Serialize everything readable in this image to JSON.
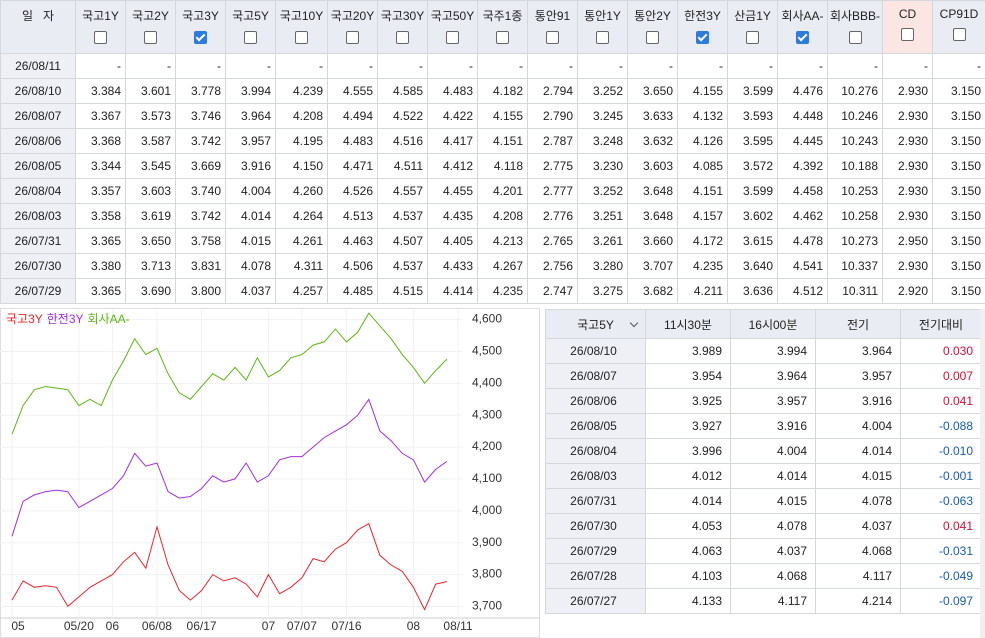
{
  "top_table": {
    "columns": [
      {
        "label": "일   자"
      },
      {
        "label": "국고1Y",
        "checked": false
      },
      {
        "label": "국고2Y",
        "checked": false
      },
      {
        "label": "국고3Y",
        "checked": true
      },
      {
        "label": "국고5Y",
        "checked": false
      },
      {
        "label": "국고10Y",
        "checked": false
      },
      {
        "label": "국고20Y",
        "checked": false
      },
      {
        "label": "국고30Y",
        "checked": false
      },
      {
        "label": "국고50Y",
        "checked": false
      },
      {
        "label": "국주1종",
        "checked": false
      },
      {
        "label": "통안91",
        "checked": false
      },
      {
        "label": "통안1Y",
        "checked": false
      },
      {
        "label": "통안2Y",
        "checked": false
      },
      {
        "label": "한전3Y",
        "checked": true
      },
      {
        "label": "산금1Y",
        "checked": false
      },
      {
        "label": "회사AA-",
        "checked": true
      },
      {
        "label": "회사BBB-",
        "checked": false
      },
      {
        "label": "CD",
        "checked": false
      },
      {
        "label": "CP91D",
        "checked": false
      }
    ],
    "rows": [
      [
        "26/08/11",
        "-",
        "-",
        "-",
        "-",
        "-",
        "-",
        "-",
        "-",
        "-",
        "-",
        "-",
        "-",
        "-",
        "-",
        "-",
        "-",
        "-",
        "-"
      ],
      [
        "26/08/10",
        "3.384",
        "3.601",
        "3.778",
        "3.994",
        "4.239",
        "4.555",
        "4.585",
        "4.483",
        "4.182",
        "2.794",
        "3.252",
        "3.650",
        "4.155",
        "3.599",
        "4.476",
        "10.276",
        "2.930",
        "3.150"
      ],
      [
        "26/08/07",
        "3.367",
        "3.573",
        "3.746",
        "3.964",
        "4.208",
        "4.494",
        "4.522",
        "4.422",
        "4.155",
        "2.790",
        "3.245",
        "3.633",
        "4.132",
        "3.593",
        "4.448",
        "10.246",
        "2.930",
        "3.150"
      ],
      [
        "26/08/06",
        "3.368",
        "3.587",
        "3.742",
        "3.957",
        "4.195",
        "4.483",
        "4.516",
        "4.417",
        "4.151",
        "2.787",
        "3.248",
        "3.632",
        "4.126",
        "3.595",
        "4.445",
        "10.243",
        "2.930",
        "3.150"
      ],
      [
        "26/08/05",
        "3.344",
        "3.545",
        "3.669",
        "3.916",
        "4.150",
        "4.471",
        "4.511",
        "4.412",
        "4.118",
        "2.775",
        "3.230",
        "3.603",
        "4.085",
        "3.572",
        "4.392",
        "10.188",
        "2.930",
        "3.150"
      ],
      [
        "26/08/04",
        "3.357",
        "3.603",
        "3.740",
        "4.004",
        "4.260",
        "4.526",
        "4.557",
        "4.455",
        "4.201",
        "2.777",
        "3.252",
        "3.648",
        "4.151",
        "3.599",
        "4.458",
        "10.253",
        "2.930",
        "3.150"
      ],
      [
        "26/08/03",
        "3.358",
        "3.619",
        "3.742",
        "4.014",
        "4.264",
        "4.513",
        "4.537",
        "4.435",
        "4.208",
        "2.776",
        "3.251",
        "3.648",
        "4.157",
        "3.602",
        "4.462",
        "10.258",
        "2.930",
        "3.150"
      ],
      [
        "26/07/31",
        "3.365",
        "3.650",
        "3.758",
        "4.015",
        "4.261",
        "4.463",
        "4.507",
        "4.405",
        "4.213",
        "2.765",
        "3.261",
        "3.660",
        "4.172",
        "3.615",
        "4.478",
        "10.273",
        "2.950",
        "3.150"
      ],
      [
        "26/07/30",
        "3.380",
        "3.713",
        "3.831",
        "4.078",
        "4.311",
        "4.506",
        "4.537",
        "4.433",
        "4.267",
        "2.756",
        "3.280",
        "3.707",
        "4.235",
        "3.640",
        "4.541",
        "10.337",
        "2.930",
        "3.150"
      ],
      [
        "26/07/29",
        "3.365",
        "3.690",
        "3.800",
        "4.037",
        "4.257",
        "4.485",
        "4.515",
        "4.414",
        "4.235",
        "2.747",
        "3.275",
        "3.682",
        "4.211",
        "3.636",
        "4.512",
        "10.311",
        "2.920",
        "3.150"
      ]
    ]
  },
  "chart_data": {
    "type": "line",
    "categories": [
      "05",
      null,
      null,
      null,
      null,
      null,
      "05/20",
      null,
      null,
      "06",
      null,
      null,
      null,
      "06/08",
      null,
      null,
      null,
      "06/17",
      null,
      null,
      null,
      null,
      null,
      "07",
      null,
      null,
      "07/07",
      null,
      null,
      null,
      "07/16",
      null,
      null,
      null,
      null,
      null,
      "08",
      null,
      null,
      null,
      "08/11"
    ],
    "series": [
      {
        "name": "국고3Y",
        "color": "#e8262c",
        "values": [
          3720,
          3780,
          3760,
          3765,
          3760,
          3700,
          3730,
          3760,
          3780,
          3800,
          3840,
          3870,
          3820,
          3950,
          3830,
          3750,
          3720,
          3750,
          3800,
          3780,
          3790,
          3770,
          3730,
          3800,
          3740,
          3760,
          3790,
          3850,
          3840,
          3880,
          3900,
          3940,
          3960,
          3860,
          3830,
          3810,
          3760,
          3690,
          3770,
          3778,
          null
        ]
      },
      {
        "name": "한전3Y",
        "color": "#a22ee0",
        "values": [
          3920,
          4030,
          4050,
          4060,
          4065,
          4060,
          4010,
          4030,
          4050,
          4070,
          4110,
          4180,
          4140,
          4150,
          4060,
          4040,
          4045,
          4070,
          4110,
          4090,
          4100,
          4150,
          4090,
          4110,
          4160,
          4170,
          4170,
          4200,
          4230,
          4250,
          4270,
          4300,
          4350,
          4250,
          4220,
          4180,
          4160,
          4090,
          4130,
          4155,
          null
        ]
      },
      {
        "name": "회사AA-",
        "color": "#5cb811",
        "values": [
          4240,
          4330,
          4380,
          4390,
          4385,
          4380,
          4330,
          4350,
          4330,
          4410,
          4470,
          4540,
          4490,
          4510,
          4430,
          4370,
          4350,
          4390,
          4430,
          4410,
          4450,
          4410,
          4480,
          4420,
          4440,
          4480,
          4490,
          4520,
          4530,
          4570,
          4530,
          4560,
          4620,
          4580,
          4540,
          4490,
          4450,
          4400,
          4440,
          4476,
          null
        ]
      }
    ],
    "ylim": [
      3670,
      4630
    ],
    "yticks": [
      {
        "value": 3700,
        "label": "3,700"
      },
      {
        "value": 3800,
        "label": "3,800"
      },
      {
        "value": 3900,
        "label": "3,900"
      },
      {
        "value": 4000,
        "label": "4,000"
      },
      {
        "value": 4100,
        "label": "4,100"
      },
      {
        "value": 4200,
        "label": "4,200"
      },
      {
        "value": 4300,
        "label": "4,300"
      },
      {
        "value": 4400,
        "label": "4,400"
      },
      {
        "value": 4500,
        "label": "4,500"
      },
      {
        "value": 4600,
        "label": "4,600"
      }
    ],
    "grid": true
  },
  "side_table": {
    "header": [
      "국고5Y",
      "11시30분",
      "16시00분",
      "전기",
      "전기대비"
    ],
    "rows": [
      [
        "26/08/10",
        "3.989",
        "3.994",
        "3.964",
        "0.030"
      ],
      [
        "26/08/07",
        "3.954",
        "3.964",
        "3.957",
        "0.007"
      ],
      [
        "26/08/06",
        "3.925",
        "3.957",
        "3.916",
        "0.041"
      ],
      [
        "26/08/05",
        "3.927",
        "3.916",
        "4.004",
        "-0.088"
      ],
      [
        "26/08/04",
        "3.996",
        "4.004",
        "4.014",
        "-0.010"
      ],
      [
        "26/08/03",
        "4.012",
        "4.014",
        "4.015",
        "-0.001"
      ],
      [
        "26/07/31",
        "4.014",
        "4.015",
        "4.078",
        "-0.063"
      ],
      [
        "26/07/30",
        "4.053",
        "4.078",
        "4.037",
        "0.041"
      ],
      [
        "26/07/29",
        "4.063",
        "4.037",
        "4.068",
        "-0.031"
      ],
      [
        "26/07/28",
        "4.103",
        "4.068",
        "4.117",
        "-0.049"
      ],
      [
        "26/07/27",
        "4.133",
        "4.117",
        "4.214",
        "-0.097"
      ]
    ]
  }
}
